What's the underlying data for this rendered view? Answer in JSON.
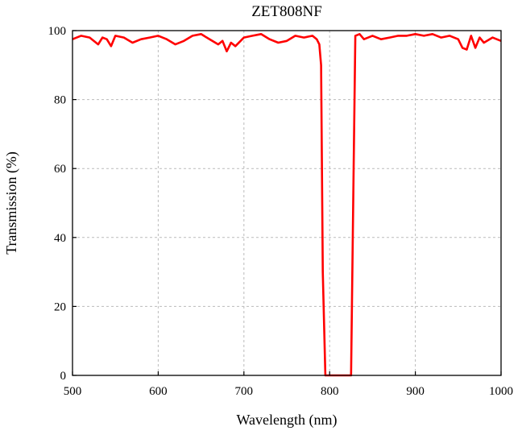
{
  "chart_data": {
    "type": "line",
    "title": "ZET808NF",
    "xlabel": "Wavelength (nm)",
    "ylabel": "Transmission (%)",
    "xlim": [
      500,
      1000
    ],
    "ylim": [
      0,
      100
    ],
    "xticks": [
      500,
      600,
      700,
      800,
      900,
      1000
    ],
    "yticks": [
      0,
      20,
      40,
      60,
      80,
      100
    ],
    "grid": true,
    "series": [
      {
        "color": "#ff0000",
        "x": [
          500,
          510,
          520,
          530,
          535,
          540,
          545,
          550,
          560,
          570,
          580,
          590,
          600,
          610,
          620,
          630,
          640,
          650,
          660,
          670,
          675,
          680,
          685,
          690,
          700,
          710,
          720,
          730,
          740,
          750,
          760,
          770,
          780,
          785,
          788,
          790,
          792,
          795,
          800,
          810,
          820,
          825,
          828,
          830,
          835,
          840,
          850,
          860,
          870,
          880,
          890,
          900,
          910,
          920,
          930,
          940,
          950,
          955,
          960,
          965,
          970,
          975,
          980,
          990,
          1000
        ],
        "y": [
          97.5,
          98.5,
          98,
          96,
          98,
          97.5,
          95.5,
          98.5,
          98,
          96.5,
          97.5,
          98,
          98.5,
          97.5,
          96,
          97,
          98.5,
          99,
          97.5,
          96,
          97,
          94,
          96.5,
          95.5,
          98,
          98.5,
          99,
          97.5,
          96.5,
          97,
          98.5,
          98,
          98.5,
          97.5,
          96,
          90,
          30,
          0,
          0,
          0,
          0,
          0,
          60,
          98.5,
          99,
          97.5,
          98.5,
          97.5,
          98,
          98.5,
          98.5,
          99,
          98.5,
          99,
          98,
          98.5,
          97.5,
          95,
          94.5,
          98.5,
          95,
          98,
          96.5,
          98,
          97
        ]
      }
    ]
  }
}
